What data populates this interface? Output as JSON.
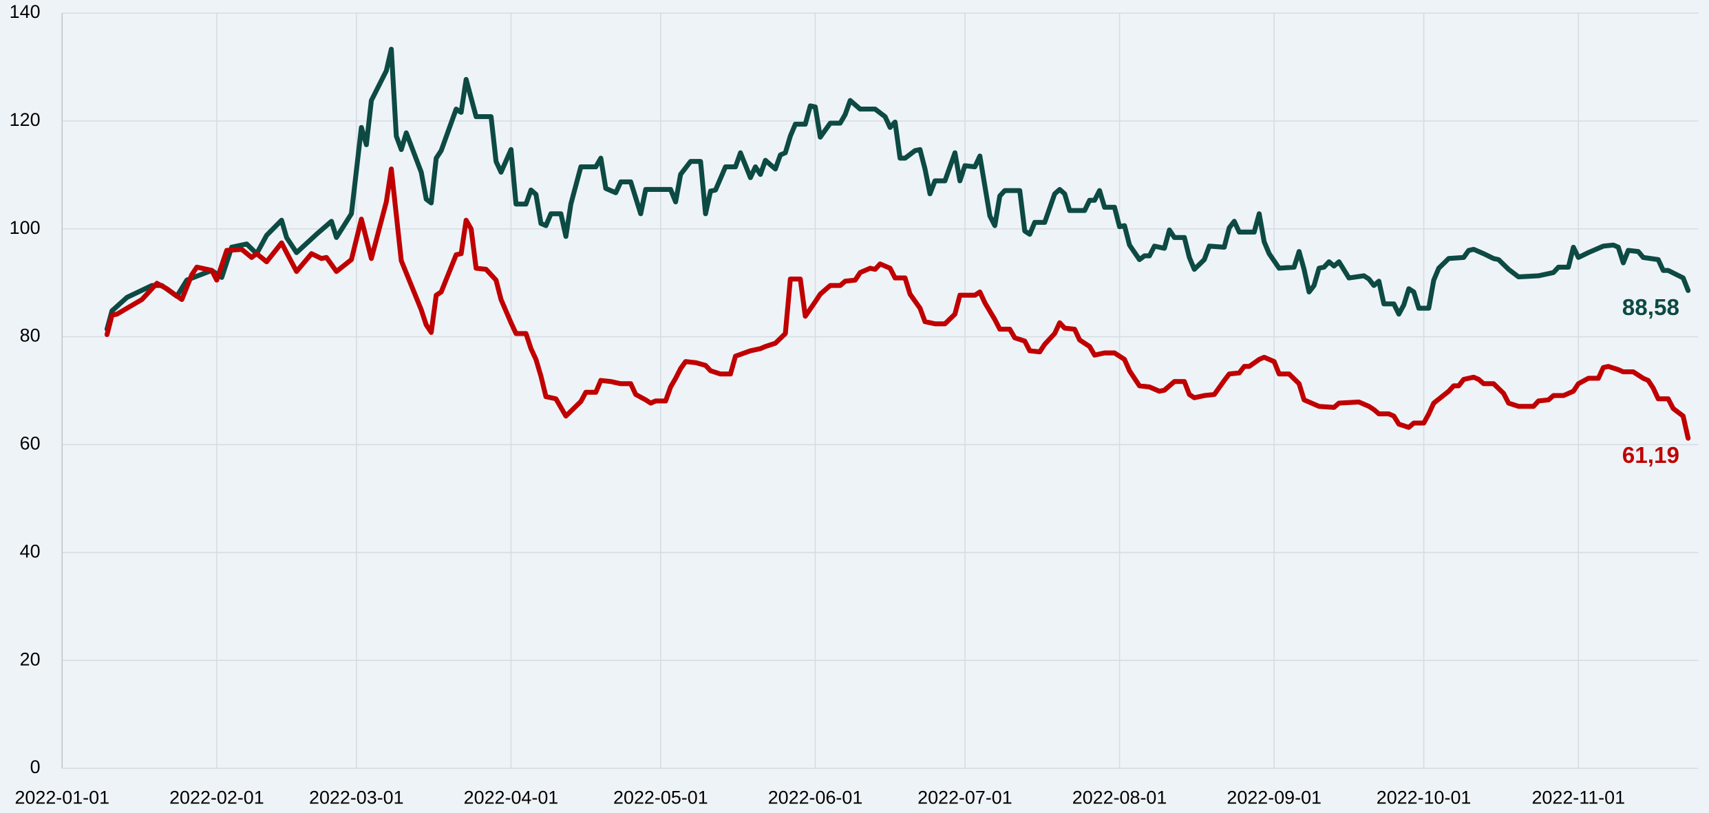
{
  "chart_data": {
    "type": "line",
    "xlim": [
      "2022-01-01",
      "2022-11-25"
    ],
    "xticks": [
      "2022-01-01",
      "2022-02-01",
      "2022-03-01",
      "2022-04-01",
      "2022-05-01",
      "2022-06-01",
      "2022-07-01",
      "2022-08-01",
      "2022-09-01",
      "2022-10-01",
      "2022-11-01"
    ],
    "ylim": [
      0,
      140
    ],
    "yticks": [
      0,
      20,
      40,
      60,
      80,
      100,
      120,
      140
    ],
    "grid": true,
    "series": [
      {
        "color": "#0d4a43",
        "end_label": "88,58",
        "x": [
          "2022-01-10",
          "2022-01-11",
          "2022-01-14",
          "2022-01-19",
          "2022-01-21",
          "2022-01-24",
          "2022-01-26",
          "2022-01-31",
          "2022-02-02",
          "2022-02-04",
          "2022-02-07",
          "2022-02-09",
          "2022-02-11",
          "2022-02-14",
          "2022-02-15",
          "2022-02-17",
          "2022-02-21",
          "2022-02-24",
          "2022-02-25",
          "2022-02-28",
          "2022-03-02",
          "2022-03-03",
          "2022-03-04",
          "2022-03-07",
          "2022-03-08",
          "2022-03-09",
          "2022-03-10",
          "2022-03-11",
          "2022-03-14",
          "2022-03-15",
          "2022-03-16",
          "2022-03-17",
          "2022-03-18",
          "2022-03-21",
          "2022-03-22",
          "2022-03-23",
          "2022-03-25",
          "2022-03-28",
          "2022-03-29",
          "2022-03-30",
          "2022-04-01",
          "2022-04-02",
          "2022-04-04",
          "2022-04-05",
          "2022-04-06",
          "2022-04-07",
          "2022-04-08",
          "2022-04-09",
          "2022-04-11",
          "2022-04-12",
          "2022-04-13",
          "2022-04-15",
          "2022-04-18",
          "2022-04-19",
          "2022-04-20",
          "2022-04-22",
          "2022-04-23",
          "2022-04-25",
          "2022-04-27",
          "2022-04-28",
          "2022-04-30",
          "2022-05-03",
          "2022-05-04",
          "2022-05-05",
          "2022-05-07",
          "2022-05-09",
          "2022-05-10",
          "2022-05-11",
          "2022-05-12",
          "2022-05-14",
          "2022-05-16",
          "2022-05-17",
          "2022-05-19",
          "2022-05-20",
          "2022-05-21",
          "2022-05-22",
          "2022-05-24",
          "2022-05-25",
          "2022-05-26",
          "2022-05-27",
          "2022-05-28",
          "2022-05-30",
          "2022-05-31",
          "2022-06-01",
          "2022-06-02",
          "2022-06-04",
          "2022-06-06",
          "2022-06-07",
          "2022-06-08",
          "2022-06-10",
          "2022-06-13",
          "2022-06-15",
          "2022-06-16",
          "2022-06-17",
          "2022-06-18",
          "2022-06-19",
          "2022-06-21",
          "2022-06-22",
          "2022-06-23",
          "2022-06-24",
          "2022-06-25",
          "2022-06-27",
          "2022-06-29",
          "2022-06-30",
          "2022-07-01",
          "2022-07-03",
          "2022-07-04",
          "2022-07-06",
          "2022-07-07",
          "2022-07-08",
          "2022-07-09",
          "2022-07-12",
          "2022-07-13",
          "2022-07-14",
          "2022-07-15",
          "2022-07-17",
          "2022-07-19",
          "2022-07-20",
          "2022-07-21",
          "2022-07-22",
          "2022-07-25",
          "2022-07-26",
          "2022-07-27",
          "2022-07-28",
          "2022-07-29",
          "2022-07-31",
          "2022-08-01",
          "2022-08-02",
          "2022-08-03",
          "2022-08-05",
          "2022-08-06",
          "2022-08-07",
          "2022-08-08",
          "2022-08-10",
          "2022-08-11",
          "2022-08-12",
          "2022-08-14",
          "2022-08-15",
          "2022-08-16",
          "2022-08-18",
          "2022-08-19",
          "2022-08-22",
          "2022-08-23",
          "2022-08-24",
          "2022-08-25",
          "2022-08-28",
          "2022-08-29",
          "2022-08-30",
          "2022-08-31",
          "2022-09-02",
          "2022-09-05",
          "2022-09-06",
          "2022-09-07",
          "2022-09-08",
          "2022-09-09",
          "2022-09-10",
          "2022-09-11",
          "2022-09-12",
          "2022-09-13",
          "2022-09-14",
          "2022-09-16",
          "2022-09-19",
          "2022-09-20",
          "2022-09-21",
          "2022-09-22",
          "2022-09-23",
          "2022-09-25",
          "2022-09-26",
          "2022-09-27",
          "2022-09-28",
          "2022-09-29",
          "2022-09-30",
          "2022-10-02",
          "2022-10-03",
          "2022-10-04",
          "2022-10-06",
          "2022-10-09",
          "2022-10-10",
          "2022-10-11",
          "2022-10-13",
          "2022-10-15",
          "2022-10-16",
          "2022-10-18",
          "2022-10-20",
          "2022-10-24",
          "2022-10-27",
          "2022-10-28",
          "2022-10-30",
          "2022-10-31",
          "2022-11-01",
          "2022-11-03",
          "2022-11-04",
          "2022-11-06",
          "2022-11-08",
          "2022-11-09",
          "2022-11-10",
          "2022-11-11",
          "2022-11-13",
          "2022-11-14",
          "2022-11-17",
          "2022-11-18",
          "2022-11-19",
          "2022-11-22",
          "2022-11-23"
        ],
        "values": [
          81.4,
          84.8,
          87.3,
          89.5,
          89.5,
          87.5,
          90.5,
          92.3,
          91,
          96.6,
          97.2,
          95.4,
          98.8,
          101.6,
          98.4,
          95.6,
          99,
          101.4,
          98.4,
          102.8,
          118.8,
          115.6,
          123.8,
          129.3,
          133.3,
          117.2,
          114.7,
          117.8,
          110.5,
          105.5,
          104.8,
          113.1,
          114.5,
          122.2,
          121.6,
          127.7,
          120.8,
          120.8,
          112.5,
          110.5,
          114.7,
          104.6,
          104.6,
          107.2,
          106.4,
          101,
          100.6,
          102.8,
          102.8,
          98.6,
          104.6,
          111.5,
          111.5,
          113.1,
          107.5,
          106.7,
          108.7,
          108.7,
          102.8,
          107.3,
          107.3,
          107.3,
          105,
          110.1,
          112.5,
          112.5,
          102.8,
          107,
          107.2,
          111.5,
          111.5,
          114.1,
          109.5,
          111.5,
          110.1,
          112.7,
          111.1,
          113.7,
          114.1,
          117.2,
          119.4,
          119.4,
          122.8,
          122.6,
          117,
          119.6,
          119.6,
          121.2,
          123.8,
          122.2,
          122.2,
          120.8,
          118.8,
          119.8,
          113.1,
          113.1,
          114.5,
          114.7,
          111.1,
          106.5,
          108.9,
          108.9,
          114.1,
          108.9,
          111.7,
          111.5,
          113.5,
          102.4,
          100.6,
          106.1,
          107.1,
          107.1,
          99.6,
          99,
          101.2,
          101.2,
          106.5,
          107.3,
          106.5,
          103.4,
          103.4,
          105.3,
          105.3,
          107.1,
          104,
          104,
          100.4,
          100.6,
          97,
          94.3,
          95,
          95,
          96.8,
          96.4,
          99.8,
          98.4,
          98.4,
          94.7,
          92.5,
          94.3,
          96.8,
          96.6,
          100.2,
          101.4,
          99.4,
          99.4,
          102.8,
          97.6,
          95.4,
          92.7,
          92.9,
          95.8,
          92.5,
          88.3,
          89.5,
          92.7,
          92.9,
          93.9,
          93.1,
          93.9,
          90.9,
          91.3,
          90.7,
          89.5,
          90.3,
          86.1,
          86.1,
          84.2,
          85.9,
          88.9,
          88.3,
          85.3,
          85.3,
          90.5,
          92.7,
          94.5,
          94.7,
          96,
          96.2,
          95.4,
          94.5,
          94.3,
          92.5,
          91.1,
          91.3,
          91.9,
          92.9,
          92.9,
          96.6,
          94.7,
          95.6,
          96,
          96.8,
          97,
          96.6,
          93.7,
          96,
          95.8,
          94.7,
          94.3,
          92.3,
          92.3,
          90.9,
          88.58
        ]
      },
      {
        "color": "#c00000",
        "end_label": "61,19",
        "x": [
          "2022-01-10",
          "2022-01-11",
          "2022-01-12",
          "2022-01-17",
          "2022-01-20",
          "2022-01-22",
          "2022-01-25",
          "2022-01-27",
          "2022-01-28",
          "2022-01-31",
          "2022-02-01",
          "2022-02-03",
          "2022-02-06",
          "2022-02-08",
          "2022-02-09",
          "2022-02-11",
          "2022-02-14",
          "2022-02-15",
          "2022-02-17",
          "2022-02-20",
          "2022-02-22",
          "2022-02-23",
          "2022-02-25",
          "2022-02-28",
          "2022-03-02",
          "2022-03-04",
          "2022-03-07",
          "2022-03-08",
          "2022-03-10",
          "2022-03-14",
          "2022-03-15",
          "2022-03-16",
          "2022-03-17",
          "2022-03-18",
          "2022-03-21",
          "2022-03-22",
          "2022-03-23",
          "2022-03-24",
          "2022-03-25",
          "2022-03-27",
          "2022-03-29",
          "2022-03-30",
          "2022-04-01",
          "2022-04-02",
          "2022-04-04",
          "2022-04-05",
          "2022-04-06",
          "2022-04-07",
          "2022-04-08",
          "2022-04-10",
          "2022-04-12",
          "2022-04-15",
          "2022-04-16",
          "2022-04-18",
          "2022-04-19",
          "2022-04-21",
          "2022-04-23",
          "2022-04-25",
          "2022-04-26",
          "2022-04-28",
          "2022-04-29",
          "2022-04-30",
          "2022-05-02",
          "2022-05-03",
          "2022-05-04",
          "2022-05-05",
          "2022-05-06",
          "2022-05-08",
          "2022-05-10",
          "2022-05-11",
          "2022-05-13",
          "2022-05-15",
          "2022-05-16",
          "2022-05-19",
          "2022-05-21",
          "2022-05-22",
          "2022-05-24",
          "2022-05-26",
          "2022-05-27",
          "2022-05-29",
          "2022-05-30",
          "2022-06-01",
          "2022-06-02",
          "2022-06-04",
          "2022-06-06",
          "2022-06-07",
          "2022-06-09",
          "2022-06-10",
          "2022-06-12",
          "2022-06-13",
          "2022-06-14",
          "2022-06-16",
          "2022-06-17",
          "2022-06-19",
          "2022-06-20",
          "2022-06-22",
          "2022-06-23",
          "2022-06-25",
          "2022-06-27",
          "2022-06-29",
          "2022-06-30",
          "2022-07-03",
          "2022-07-04",
          "2022-07-05",
          "2022-07-07",
          "2022-07-08",
          "2022-07-10",
          "2022-07-11",
          "2022-07-13",
          "2022-07-14",
          "2022-07-16",
          "2022-07-17",
          "2022-07-19",
          "2022-07-20",
          "2022-07-21",
          "2022-07-23",
          "2022-07-24",
          "2022-07-26",
          "2022-07-27",
          "2022-07-29",
          "2022-07-31",
          "2022-08-02",
          "2022-08-03",
          "2022-08-05",
          "2022-08-07",
          "2022-08-09",
          "2022-08-10",
          "2022-08-12",
          "2022-08-14",
          "2022-08-15",
          "2022-08-16",
          "2022-08-18",
          "2022-08-20",
          "2022-08-22",
          "2022-08-23",
          "2022-08-25",
          "2022-08-26",
          "2022-08-27",
          "2022-08-29",
          "2022-08-30",
          "2022-09-01",
          "2022-09-02",
          "2022-09-04",
          "2022-09-06",
          "2022-09-07",
          "2022-09-08",
          "2022-09-10",
          "2022-09-13",
          "2022-09-14",
          "2022-09-18",
          "2022-09-20",
          "2022-09-21",
          "2022-09-22",
          "2022-09-24",
          "2022-09-25",
          "2022-09-26",
          "2022-09-28",
          "2022-09-29",
          "2022-10-01",
          "2022-10-02",
          "2022-10-03",
          "2022-10-06",
          "2022-10-07",
          "2022-10-08",
          "2022-10-09",
          "2022-10-11",
          "2022-10-12",
          "2022-10-13",
          "2022-10-15",
          "2022-10-17",
          "2022-10-18",
          "2022-10-20",
          "2022-10-23",
          "2022-10-24",
          "2022-10-26",
          "2022-10-27",
          "2022-10-29",
          "2022-10-31",
          "2022-11-01",
          "2022-11-03",
          "2022-11-05",
          "2022-11-06",
          "2022-11-07",
          "2022-11-09",
          "2022-11-10",
          "2022-11-12",
          "2022-11-14",
          "2022-11-15",
          "2022-11-16",
          "2022-11-17",
          "2022-11-19",
          "2022-11-20",
          "2022-11-22",
          "2022-11-23"
        ],
        "values": [
          80.4,
          84,
          84.2,
          86.9,
          89.9,
          88.9,
          86.9,
          91.5,
          92.9,
          92.3,
          90.5,
          96,
          96.2,
          94.7,
          95.4,
          93.9,
          97.4,
          95.6,
          92.1,
          95.4,
          94.5,
          94.7,
          92.1,
          94.3,
          101.8,
          94.5,
          105,
          111.1,
          94.1,
          85,
          82.2,
          80.8,
          87.7,
          88.3,
          95.2,
          95.4,
          101.6,
          100,
          92.7,
          92.5,
          90.5,
          86.9,
          82.6,
          80.6,
          80.6,
          77.8,
          75.8,
          72.7,
          68.9,
          68.5,
          65.3,
          68,
          69.7,
          69.7,
          71.9,
          71.7,
          71.3,
          71.3,
          69.3,
          68.3,
          67.7,
          68.1,
          68.1,
          70.7,
          72.3,
          74.1,
          75.4,
          75.2,
          74.7,
          73.7,
          73.1,
          73.1,
          76.4,
          77.4,
          77.8,
          78.2,
          78.8,
          80.6,
          90.7,
          90.7,
          83.8,
          86.5,
          87.9,
          89.5,
          89.5,
          90.3,
          90.5,
          91.9,
          92.7,
          92.5,
          93.5,
          92.7,
          90.9,
          90.9,
          87.9,
          85.3,
          82.8,
          82.4,
          82.4,
          84.2,
          87.7,
          87.7,
          88.3,
          86.3,
          83.2,
          81.4,
          81.4,
          79.8,
          79.2,
          77.4,
          77.2,
          78.6,
          80.6,
          82.6,
          81.6,
          81.4,
          79.4,
          78.2,
          76.6,
          77,
          77,
          75.8,
          73.7,
          70.9,
          70.7,
          69.9,
          70.1,
          71.7,
          71.7,
          69.3,
          68.7,
          69.1,
          69.3,
          71.9,
          73.1,
          73.3,
          74.5,
          74.5,
          75.8,
          76.2,
          75.4,
          73.1,
          73.1,
          71.3,
          68.3,
          67.9,
          67.1,
          66.9,
          67.7,
          67.9,
          67.1,
          66.5,
          65.7,
          65.7,
          65.3,
          63.8,
          63.2,
          64,
          64,
          65.7,
          67.7,
          69.9,
          70.9,
          70.9,
          72.1,
          72.5,
          72.1,
          71.3,
          71.3,
          69.5,
          67.7,
          67.1,
          67.1,
          68.1,
          68.3,
          69.1,
          69.1,
          69.9,
          71.3,
          72.3,
          72.3,
          74.3,
          74.5,
          73.9,
          73.5,
          73.5,
          72.3,
          71.9,
          70.5,
          68.5,
          68.5,
          66.7,
          65.3,
          61.19
        ]
      }
    ]
  }
}
